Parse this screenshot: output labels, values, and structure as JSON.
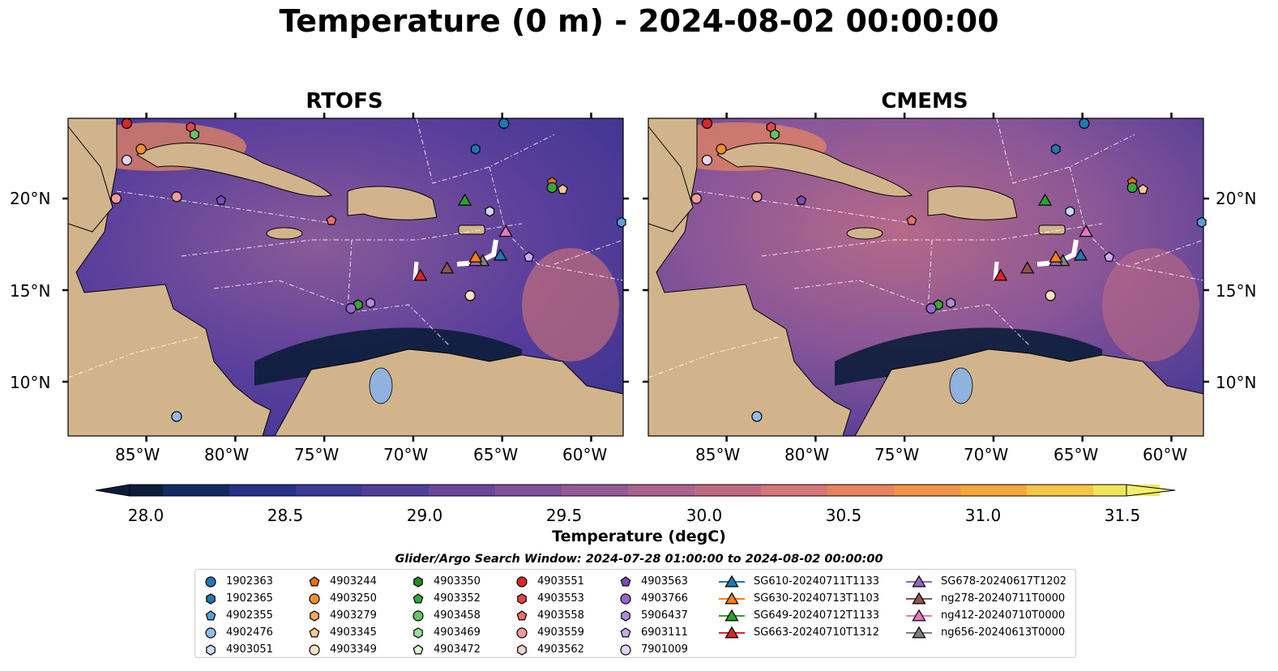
{
  "title": "Temperature (0 m) - 2024-08-02 00:00:00",
  "panels": [
    {
      "title": "RTOFS"
    },
    {
      "title": "CMEMS"
    }
  ],
  "axes": {
    "lat_ticks": [
      "20°N",
      "15°N",
      "10°N"
    ],
    "lon_ticks": [
      "85°W",
      "80°W",
      "75°W",
      "70°W",
      "65°W",
      "60°W"
    ]
  },
  "colorbar": {
    "label": "Temperature (degC)",
    "ticks": [
      "28.0",
      "28.5",
      "29.0",
      "29.5",
      "30.0",
      "30.5",
      "31.0",
      "31.5"
    ],
    "range": [
      28.0,
      31.5
    ],
    "colors": [
      "#0b1d3a",
      "#132b63",
      "#26318a",
      "#3c3a96",
      "#523f9c",
      "#6a469e",
      "#80509c",
      "#955a96",
      "#aa6390",
      "#c06a84",
      "#d57676",
      "#e48560",
      "#f09548",
      "#f6a83e",
      "#f5c647",
      "#f0e55a"
    ]
  },
  "search_window": "Glider/Argo Search Window: 2024-07-28 01:00:00 to 2024-08-02 00:00:00",
  "legend": [
    [
      {
        "label": "1902363",
        "marker": "circle",
        "color": "#1f77b4"
      },
      {
        "label": "1902365",
        "marker": "hexagon",
        "color": "#1f77b4"
      },
      {
        "label": "4902355",
        "marker": "pentagon",
        "color": "#5aa0d6"
      },
      {
        "label": "4902476",
        "marker": "circle",
        "color": "#8fbde6"
      },
      {
        "label": "4903051",
        "marker": "hexagon",
        "color": "#c6ddf3"
      }
    ],
    [
      {
        "label": "4903244",
        "marker": "pentagon",
        "color": "#e86f0c"
      },
      {
        "label": "4903250",
        "marker": "circle",
        "color": "#f28e2b"
      },
      {
        "label": "4903279",
        "marker": "hexagon",
        "color": "#f7a85e"
      },
      {
        "label": "4903345",
        "marker": "pentagon",
        "color": "#fbc893"
      },
      {
        "label": "4903349",
        "marker": "circle",
        "color": "#fde1c3"
      }
    ],
    [
      {
        "label": "4903350",
        "marker": "hexagon",
        "color": "#238b21"
      },
      {
        "label": "4903352",
        "marker": "pentagon",
        "color": "#3aa53a"
      },
      {
        "label": "4903458",
        "marker": "circle",
        "color": "#62c462"
      },
      {
        "label": "4903469",
        "marker": "hexagon",
        "color": "#9de09a"
      },
      {
        "label": "4903472",
        "marker": "pentagon",
        "color": "#d6f5d0"
      }
    ],
    [
      {
        "label": "4903551",
        "marker": "circle",
        "color": "#d62728"
      },
      {
        "label": "4903553",
        "marker": "hexagon",
        "color": "#e04848"
      },
      {
        "label": "4903558",
        "marker": "pentagon",
        "color": "#ea6e6e"
      },
      {
        "label": "4903559",
        "marker": "circle",
        "color": "#f29b9b"
      },
      {
        "label": "4903562",
        "marker": "hexagon",
        "color": "#fbd0cc"
      }
    ],
    [
      {
        "label": "4903563",
        "marker": "pentagon",
        "color": "#7a4fb5"
      },
      {
        "label": "4903766",
        "marker": "circle",
        "color": "#9568c9"
      },
      {
        "label": "5906437",
        "marker": "hexagon",
        "color": "#b08bdc"
      },
      {
        "label": "6903111",
        "marker": "pentagon",
        "color": "#c9acea"
      },
      {
        "label": "7901009",
        "marker": "circle",
        "color": "#e4d1f6"
      }
    ],
    [
      {
        "label": "SG610-20240711T1133",
        "marker": "triangle",
        "color": "#1f77b4"
      },
      {
        "label": "SG630-20240713T1103",
        "marker": "triangle",
        "color": "#ff7f0e"
      },
      {
        "label": "SG649-20240712T1133",
        "marker": "triangle",
        "color": "#2ca02c"
      },
      {
        "label": "SG663-20240710T1312",
        "marker": "triangle",
        "color": "#d62728"
      }
    ],
    [
      {
        "label": "SG678-20240617T1202",
        "marker": "triangle",
        "color": "#9467bd"
      },
      {
        "label": "ng278-20240711T0000",
        "marker": "triangle",
        "color": "#8c564b"
      },
      {
        "label": "ng412-20240710T0000",
        "marker": "triangle",
        "color": "#e377c2"
      },
      {
        "label": "ng656-20240613T0000",
        "marker": "triangle",
        "color": "#7f7f7f"
      }
    ]
  ],
  "markers": [
    {
      "lon": -86.1,
      "lat": 24.1,
      "marker": "circle",
      "color": "#d62728"
    },
    {
      "lon": -82.5,
      "lat": 23.9,
      "marker": "hexagon",
      "color": "#e04848"
    },
    {
      "lon": -82.3,
      "lat": 23.5,
      "marker": "hexagon",
      "color": "#62c462"
    },
    {
      "lon": -85.3,
      "lat": 22.7,
      "marker": "circle",
      "color": "#f28e2b"
    },
    {
      "lon": -86.1,
      "lat": 22.1,
      "marker": "circle",
      "color": "#e4d1f6"
    },
    {
      "lon": -64.9,
      "lat": 24.1,
      "marker": "circle",
      "color": "#1f77b4"
    },
    {
      "lon": -66.5,
      "lat": 22.7,
      "marker": "hexagon",
      "color": "#1f77b4"
    },
    {
      "lon": -62.2,
      "lat": 20.9,
      "marker": "pentagon",
      "color": "#e86f0c"
    },
    {
      "lon": -62.2,
      "lat": 20.6,
      "marker": "circle",
      "color": "#3aa53a"
    },
    {
      "lon": -61.6,
      "lat": 20.5,
      "marker": "pentagon",
      "color": "#fbc893"
    },
    {
      "lon": -86.7,
      "lat": 20.0,
      "marker": "circle",
      "color": "#f29b9b"
    },
    {
      "lon": -83.3,
      "lat": 20.1,
      "marker": "circle",
      "color": "#f29b9b"
    },
    {
      "lon": -80.8,
      "lat": 19.9,
      "marker": "pentagon",
      "color": "#7a4fb5"
    },
    {
      "lon": -74.6,
      "lat": 18.8,
      "marker": "pentagon",
      "color": "#ea6e6e"
    },
    {
      "lon": -65.7,
      "lat": 19.3,
      "marker": "hexagon",
      "color": "#c6ddf3"
    },
    {
      "lon": -58.3,
      "lat": 18.7,
      "marker": "hexagon",
      "color": "#5aa0d6"
    },
    {
      "lon": -63.5,
      "lat": 16.8,
      "marker": "pentagon",
      "color": "#c9acea"
    },
    {
      "lon": -73.1,
      "lat": 14.2,
      "marker": "hexagon",
      "color": "#3aa53a"
    },
    {
      "lon": -73.5,
      "lat": 14.0,
      "marker": "circle",
      "color": "#9568c9"
    },
    {
      "lon": -72.4,
      "lat": 14.3,
      "marker": "hexagon",
      "color": "#b08bdc"
    },
    {
      "lon": -66.8,
      "lat": 14.7,
      "marker": "circle",
      "color": "#fde1c3"
    },
    {
      "lon": -83.3,
      "lat": 8.1,
      "marker": "circle",
      "color": "#8fbde6"
    },
    {
      "lon": -67.1,
      "lat": 19.9,
      "marker": "triangle",
      "color": "#2ca02c"
    },
    {
      "lon": -64.8,
      "lat": 18.2,
      "marker": "triangle",
      "color": "#e377c2"
    },
    {
      "lon": -65.1,
      "lat": 16.9,
      "marker": "triangle",
      "color": "#1f77b4"
    },
    {
      "lon": -66.1,
      "lat": 16.6,
      "marker": "triangle",
      "color": "#7f7f7f"
    },
    {
      "lon": -66.5,
      "lat": 16.6,
      "marker": "triangle",
      "color": "#9467bd"
    },
    {
      "lon": -66.5,
      "lat": 16.8,
      "marker": "triangle",
      "color": "#ff7f0e"
    },
    {
      "lon": -68.1,
      "lat": 16.2,
      "marker": "triangle",
      "color": "#8c564b"
    },
    {
      "lon": -69.6,
      "lat": 15.8,
      "marker": "triangle",
      "color": "#d62728"
    }
  ]
}
